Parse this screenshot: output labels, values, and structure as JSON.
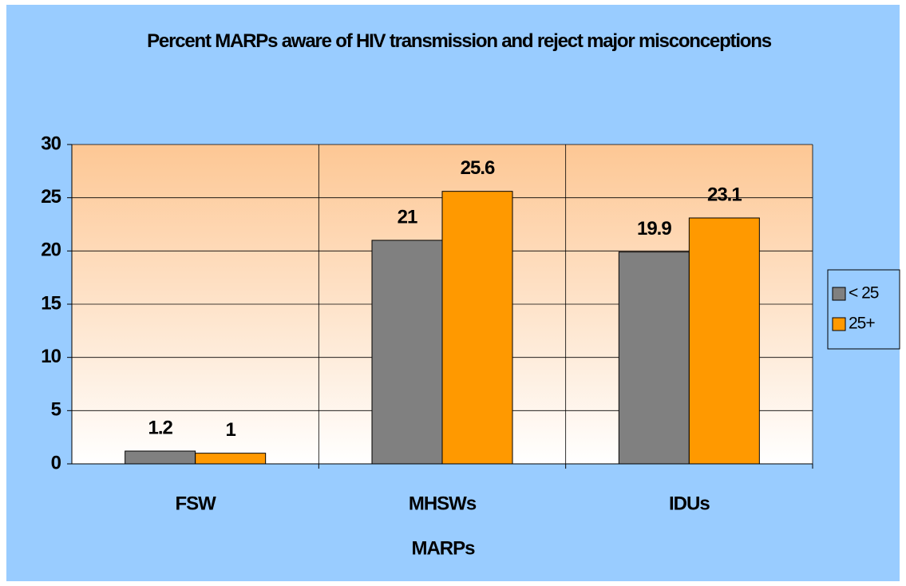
{
  "chart_data": {
    "type": "bar",
    "title": "Percent MARPs aware of HIV transmission and reject major misconceptions",
    "x_label": "MARPs",
    "categories": [
      "FSW",
      "MHSWs",
      "IDUs"
    ],
    "series": [
      {
        "name": "< 25",
        "color": "#808080",
        "values": [
          1.2,
          21,
          19.9
        ]
      },
      {
        "name": "25+",
        "color": "#ff9900",
        "values": [
          1,
          25.6,
          23.1
        ]
      }
    ],
    "ylim": [
      0,
      30
    ],
    "yticks": [
      0,
      5,
      10,
      15,
      20,
      25,
      30
    ],
    "grid": true,
    "legend": "right"
  }
}
